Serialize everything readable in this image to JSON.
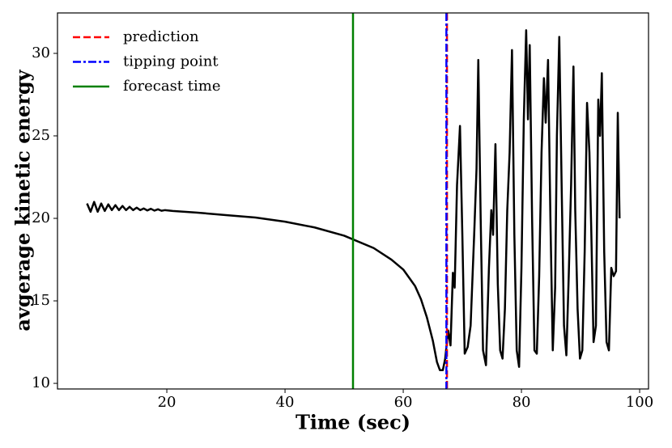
{
  "chart_data": {
    "type": "line",
    "xlabel": "Time (sec)",
    "ylabel": "avgerage kinetic energy",
    "x": [
      6.5,
      7.1,
      7.7,
      8.3,
      8.9,
      9.5,
      10.1,
      10.7,
      11.3,
      11.9,
      12.5,
      13.1,
      13.7,
      14.3,
      14.9,
      15.5,
      16.1,
      16.7,
      17.3,
      17.9,
      18.5,
      19.1,
      19.7,
      21,
      25,
      30,
      35,
      40,
      45,
      50,
      55,
      58,
      60,
      62,
      63,
      64,
      65,
      65.7,
      66.2,
      66.7,
      67.1,
      67.6,
      68.0,
      68.4,
      68.7,
      69.1,
      69.6,
      70.0,
      70.4,
      70.9,
      71.4,
      72.0,
      72.4,
      72.7,
      73.1,
      73.5,
      74.0,
      74.5,
      74.9,
      75.2,
      75.6,
      76.0,
      76.4,
      76.8,
      77.2,
      77.6,
      78.0,
      78.4,
      78.8,
      79.2,
      79.6,
      80.0,
      80.4,
      80.8,
      81.1,
      81.4,
      81.8,
      82.2,
      82.6,
      83.0,
      83.4,
      83.8,
      84.1,
      84.5,
      84.9,
      85.3,
      85.7,
      86.0,
      86.4,
      86.8,
      87.2,
      87.6,
      88.0,
      88.4,
      88.8,
      89.1,
      89.5,
      89.9,
      90.3,
      90.7,
      91.1,
      91.5,
      91.8,
      92.2,
      92.6,
      93.0,
      93.3,
      93.6,
      94.0,
      94.4,
      94.8,
      95.2,
      95.6,
      96.0,
      96.3,
      96.6
    ],
    "series": [
      {
        "color": "#000000",
        "values": [
          20.9,
          20.4,
          21.0,
          20.4,
          20.9,
          20.45,
          20.85,
          20.5,
          20.8,
          20.5,
          20.75,
          20.5,
          20.7,
          20.5,
          20.65,
          20.5,
          20.6,
          20.48,
          20.58,
          20.47,
          20.55,
          20.46,
          20.5,
          20.45,
          20.35,
          20.2,
          20.05,
          19.8,
          19.45,
          18.95,
          18.2,
          17.5,
          16.9,
          15.9,
          15.1,
          14.0,
          12.6,
          11.3,
          10.8,
          10.8,
          11.5,
          13.2,
          12.3,
          16.7,
          15.8,
          22.0,
          25.6,
          19.0,
          11.8,
          12.2,
          13.5,
          19.0,
          23.0,
          29.6,
          20.0,
          12.0,
          11.1,
          17.0,
          20.5,
          19.0,
          24.5,
          16.0,
          12.0,
          11.5,
          14.5,
          20.5,
          24.0,
          30.2,
          19.0,
          12.0,
          11.0,
          17.0,
          26.0,
          31.4,
          26.0,
          30.5,
          20.0,
          12.0,
          11.8,
          16.5,
          24.0,
          28.5,
          25.8,
          29.6,
          20.0,
          12.0,
          15.8,
          25.0,
          31.0,
          22.0,
          13.5,
          11.7,
          16.5,
          22.0,
          29.2,
          20.5,
          14.5,
          11.5,
          12.0,
          18.0,
          27.0,
          24.0,
          19.5,
          12.5,
          13.5,
          27.2,
          25.0,
          28.8,
          18.0,
          12.5,
          12.0,
          17.0,
          16.5,
          16.8,
          26.4,
          20.0
        ]
      }
    ],
    "vlines": [
      {
        "name": "prediction",
        "x": 67.4,
        "color": "#ff0000",
        "dash": "dashed"
      },
      {
        "name": "tipping point",
        "x": 67.3,
        "color": "#0000ff",
        "dash": "dashdot"
      },
      {
        "name": "forecast time",
        "x": 51.5,
        "color": "#008000",
        "dash": "solid"
      }
    ],
    "xlim": [
      1.5,
      101.5
    ],
    "ylim": [
      9.66,
      32.45
    ],
    "xticks": [
      20,
      40,
      60,
      80,
      100
    ],
    "yticks": [
      10,
      15,
      20,
      25,
      30
    ],
    "legend": "upper left"
  }
}
